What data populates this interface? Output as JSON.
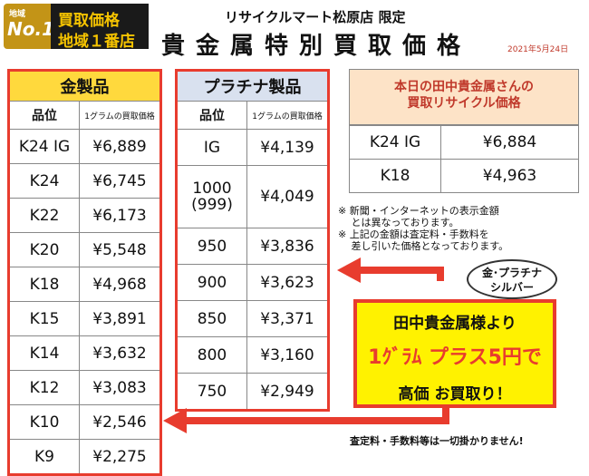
{
  "badge": {
    "small": "地域",
    "big": "No.1",
    "line1": "買取価格",
    "line2": "地域１番店"
  },
  "store": "リサイクルマート松原店 限定",
  "title": "貴金属特別買取価格",
  "date": "2021年5月24日",
  "gold": {
    "header": "金製品",
    "col1": "品位",
    "col2": "1グラムの買取価格",
    "rows": [
      [
        "K24 IG",
        "¥6,889"
      ],
      [
        "K24",
        "¥6,745"
      ],
      [
        "K22",
        "¥6,173"
      ],
      [
        "K20",
        "¥5,548"
      ],
      [
        "K18",
        "¥4,968"
      ],
      [
        "K15",
        "¥3,891"
      ],
      [
        "K14",
        "¥3,632"
      ],
      [
        "K12",
        "¥3,083"
      ],
      [
        "K10",
        "¥2,546"
      ],
      [
        "K9",
        "¥2,275"
      ]
    ]
  },
  "platinum": {
    "header": "プラチナ製品",
    "col1": "品位",
    "col2": "1グラムの買取価格",
    "rows": [
      [
        "IG",
        "¥4,139"
      ],
      [
        "1000\n(999)",
        "¥4,049"
      ],
      [
        "950",
        "¥3,836"
      ],
      [
        "900",
        "¥3,623"
      ],
      [
        "850",
        "¥3,371"
      ],
      [
        "800",
        "¥3,160"
      ],
      [
        "750",
        "¥2,949"
      ]
    ]
  },
  "today": {
    "header_line1": "本日の田中貴金属さんの",
    "header_line2": "買取リサイクル価格",
    "rows": [
      [
        "K24 IG",
        "¥6,884"
      ],
      [
        "K18",
        "¥4,963"
      ]
    ]
  },
  "notes": [
    "※ 新聞・インターネットの表示金額",
    "　 とは異なっております。",
    "※ 上記の金額は査定料・手数料を",
    "　 差し引いた価格となっております。"
  ],
  "bubble": {
    "line1": "金･プラチナ",
    "line2": "シルバー"
  },
  "promo": {
    "line1": "田中貴金属様より",
    "line2": "1ｸﾞﾗﾑ プラス5円で",
    "line3": "高価 お買取り！"
  },
  "footer": "査定料・手数料等は一切掛かりません!",
  "colors": {
    "accent": "#e83c2e",
    "gold_header": "#ffd93d",
    "plat_header": "#d9e1ef",
    "promo_bg": "#fff200"
  }
}
